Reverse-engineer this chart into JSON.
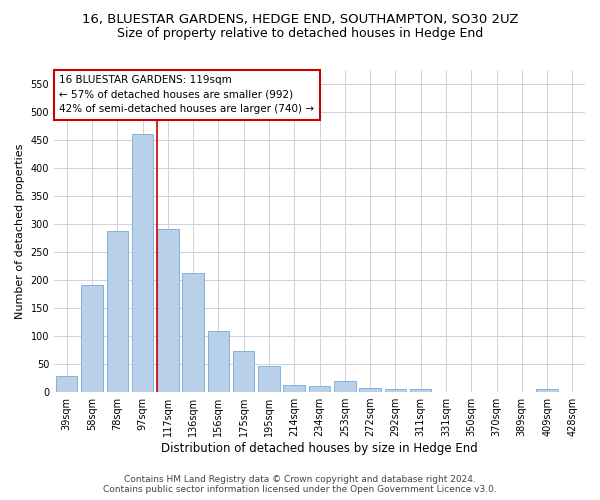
{
  "title": "16, BLUESTAR GARDENS, HEDGE END, SOUTHAMPTON, SO30 2UZ",
  "subtitle": "Size of property relative to detached houses in Hedge End",
  "xlabel": "Distribution of detached houses by size in Hedge End",
  "ylabel": "Number of detached properties",
  "bar_labels": [
    "39sqm",
    "58sqm",
    "78sqm",
    "97sqm",
    "117sqm",
    "136sqm",
    "156sqm",
    "175sqm",
    "195sqm",
    "214sqm",
    "234sqm",
    "253sqm",
    "272sqm",
    "292sqm",
    "311sqm",
    "331sqm",
    "350sqm",
    "370sqm",
    "389sqm",
    "409sqm",
    "428sqm"
  ],
  "bar_values": [
    29,
    191,
    287,
    460,
    291,
    213,
    109,
    73,
    46,
    12,
    10,
    20,
    8,
    6,
    5,
    0,
    0,
    0,
    0,
    5,
    0
  ],
  "bar_color": "#b8d0ea",
  "bar_edge_color": "#7aaad0",
  "grid_color": "#d0d0e0",
  "background_color": "#ffffff",
  "annotation_line1": "16 BLUESTAR GARDENS: 119sqm",
  "annotation_line2": "← 57% of detached houses are smaller (992)",
  "annotation_line3": "42% of semi-detached houses are larger (740) →",
  "annotation_box_color": "#ffffff",
  "annotation_box_edge_color": "#cc0000",
  "marker_line_color": "#cc0000",
  "ylim": [
    0,
    575
  ],
  "yticks": [
    0,
    50,
    100,
    150,
    200,
    250,
    300,
    350,
    400,
    450,
    500,
    550
  ],
  "footer_line1": "Contains HM Land Registry data © Crown copyright and database right 2024.",
  "footer_line2": "Contains public sector information licensed under the Open Government Licence v3.0.",
  "title_fontsize": 9.5,
  "subtitle_fontsize": 9,
  "xlabel_fontsize": 8.5,
  "ylabel_fontsize": 8,
  "tick_fontsize": 7,
  "annotation_fontsize": 7.5,
  "footer_fontsize": 6.5
}
